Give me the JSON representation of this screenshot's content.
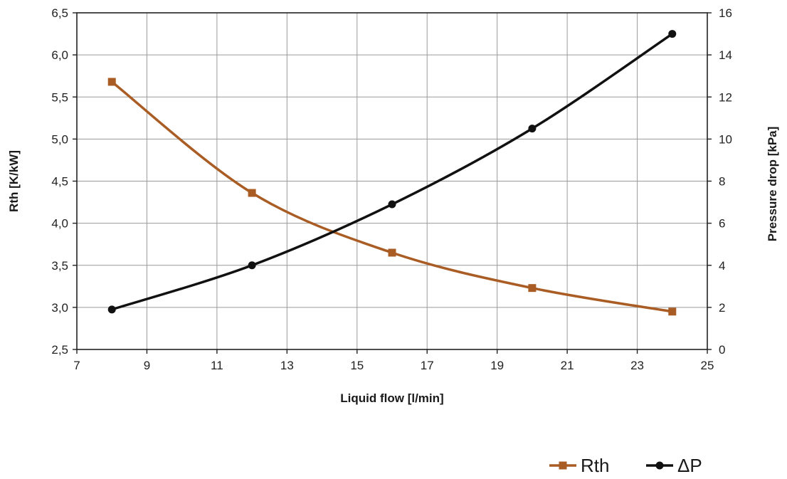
{
  "chart_data": {
    "type": "line",
    "x": [
      8,
      12,
      16,
      20,
      24
    ],
    "xlabel": "Liquid flow [l/min]",
    "ylabel": "Rth [K/kW]",
    "y2label": "Pressure drop [kPa]",
    "xlim": [
      7,
      25
    ],
    "ylim": [
      2.5,
      6.5
    ],
    "y2lim": [
      0,
      16
    ],
    "xticks": [
      7,
      9,
      11,
      13,
      15,
      17,
      19,
      21,
      23,
      25
    ],
    "yticks": [
      "2,5",
      "3,0",
      "3,5",
      "4,0",
      "4,5",
      "5,0",
      "5,5",
      "6,0",
      "6,5"
    ],
    "y2ticks": [
      0,
      2,
      4,
      6,
      8,
      10,
      12,
      14,
      16
    ],
    "grid": true,
    "legend_position": "bottom-right",
    "series": [
      {
        "name": "Rth",
        "axis": "left",
        "marker": "square",
        "color": "#a95c23",
        "values": [
          5.68,
          4.36,
          3.65,
          3.23,
          2.95
        ]
      },
      {
        "name": "ΔP",
        "axis": "right",
        "marker": "circle",
        "color": "#111111",
        "values": [
          1.9,
          4.0,
          6.9,
          10.5,
          15.0
        ]
      }
    ]
  }
}
